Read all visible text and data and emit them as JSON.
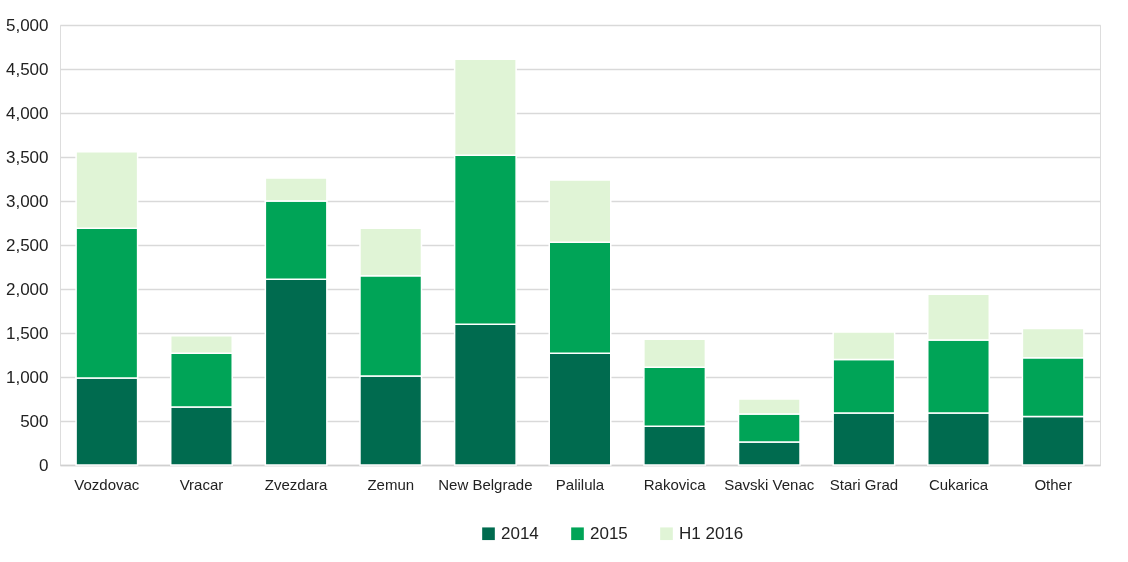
{
  "chart_data": {
    "type": "bar",
    "stacked": true,
    "categories": [
      "Vozdovac",
      "Vracar",
      "Zvezdara",
      "Zemun",
      "New Belgrade",
      "Palilula",
      "Rakovica",
      "Savski Venac",
      "Stari Grad",
      "Cukarica",
      "Other"
    ],
    "series": [
      {
        "name": "2014",
        "color": "#006b4f",
        "values": [
          990,
          660,
          2110,
          1010,
          1600,
          1270,
          440,
          260,
          590,
          590,
          550
        ]
      },
      {
        "name": "2015",
        "color": "#00a457",
        "values": [
          1700,
          610,
          890,
          1140,
          1920,
          1260,
          670,
          320,
          610,
          830,
          670
        ]
      },
      {
        "name": "H1 2016",
        "color": "#e0f4d6",
        "values": [
          870,
          200,
          260,
          540,
          1090,
          710,
          320,
          170,
          310,
          520,
          330
        ]
      }
    ],
    "ylim": [
      0,
      5000
    ],
    "yticks": [
      0,
      {
        "value": 500,
        "label": "500"
      },
      {
        "value": 1000,
        "label": "1,000"
      },
      {
        "value": 1500,
        "label": "1,500"
      },
      {
        "value": 2000,
        "label": "2,000"
      },
      {
        "value": 2500,
        "label": "2,500"
      },
      {
        "value": 3000,
        "label": "3,000"
      },
      {
        "value": 3500,
        "label": "3,500"
      },
      {
        "value": 4000,
        "label": "4,000"
      },
      {
        "value": 4500,
        "label": "4,500"
      },
      {
        "value": 5000,
        "label": "5,000"
      }
    ],
    "grid": "y",
    "legend": "bottom"
  }
}
